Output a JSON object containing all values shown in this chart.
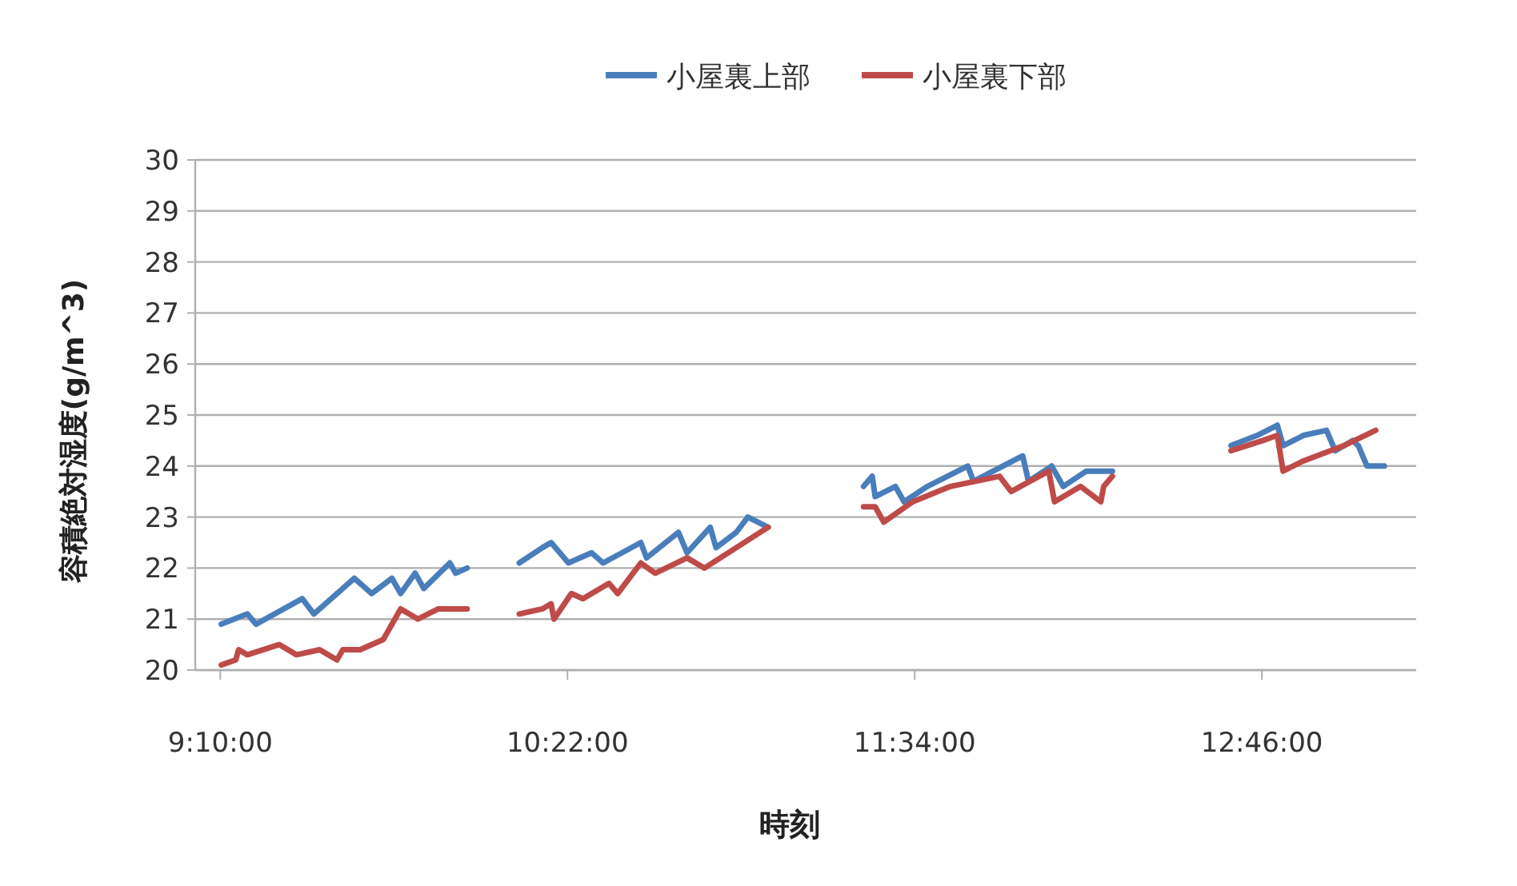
{
  "chart_data": {
    "type": "line",
    "xlabel": "時刻",
    "ylabel": "容積絶対湿度(g/m^3)",
    "xlim": [
      9.08,
      13.3
    ],
    "xticks": [
      {
        "value": 9.1667,
        "label": "9:10:00"
      },
      {
        "value": 10.3667,
        "label": "10:22:00"
      },
      {
        "value": 11.5667,
        "label": "11:34:00"
      },
      {
        "value": 12.7667,
        "label": "12:46:00"
      }
    ],
    "ylim": [
      20,
      30
    ],
    "yticks": [
      20,
      21,
      22,
      23,
      24,
      25,
      26,
      27,
      28,
      29,
      30
    ],
    "grid": "y",
    "legend": "top",
    "marker": "none",
    "line_style": "solid",
    "series": [
      {
        "name": "小屋裏上部",
        "color": "#4a7ebb",
        "x": [
          9.17,
          9.26,
          9.29,
          9.45,
          9.49,
          9.63,
          9.69,
          9.76,
          9.79,
          9.84,
          9.87,
          9.96,
          9.98,
          10.02,
          10.1,
          10.2,
          10.28,
          10.31,
          10.37,
          10.45,
          10.49,
          10.62,
          10.64,
          10.75,
          10.78,
          10.86,
          10.88,
          10.95,
          10.99,
          11.06,
          11.2,
          11.39,
          11.42,
          11.43,
          11.5,
          11.53,
          11.61,
          11.75,
          11.77,
          11.94,
          11.96,
          12.04,
          12.08,
          12.16,
          12.25,
          12.4,
          12.66,
          12.75,
          12.82,
          12.84,
          12.91,
          12.99,
          13.02,
          13.08,
          13.1,
          13.13,
          13.19
        ],
        "values": [
          20.9,
          21.1,
          20.9,
          21.4,
          21.1,
          21.8,
          21.5,
          21.8,
          21.5,
          21.9,
          21.6,
          22.1,
          21.9,
          22.0,
          null,
          22.1,
          22.4,
          22.5,
          22.1,
          22.3,
          22.1,
          22.5,
          22.2,
          22.7,
          22.3,
          22.8,
          22.4,
          22.7,
          23.0,
          22.8,
          null,
          23.6,
          23.8,
          23.4,
          23.6,
          23.3,
          23.6,
          24.0,
          23.7,
          24.2,
          23.7,
          24.0,
          23.6,
          23.9,
          23.9,
          null,
          24.4,
          24.6,
          24.8,
          24.4,
          24.6,
          24.7,
          24.3,
          24.5,
          24.4,
          24.0,
          24.0
        ]
      },
      {
        "name": "小屋裏下部",
        "color": "#be4b48",
        "x": [
          9.17,
          9.22,
          9.23,
          9.26,
          9.37,
          9.43,
          9.51,
          9.57,
          9.59,
          9.65,
          9.73,
          9.79,
          9.85,
          9.92,
          10.02,
          10.1,
          10.2,
          10.28,
          10.31,
          10.32,
          10.38,
          10.42,
          10.51,
          10.54,
          10.62,
          10.67,
          10.78,
          10.84,
          10.95,
          11.06,
          11.2,
          11.39,
          11.43,
          11.46,
          11.56,
          11.69,
          11.86,
          11.9,
          12.03,
          12.05,
          12.14,
          12.21,
          12.22,
          12.25,
          12.4,
          12.66,
          12.77,
          12.82,
          12.84,
          12.91,
          13.05,
          13.16
        ],
        "values": [
          20.1,
          20.2,
          20.4,
          20.3,
          20.5,
          20.3,
          20.4,
          20.2,
          20.4,
          20.4,
          20.6,
          21.2,
          21.0,
          21.2,
          21.2,
          null,
          21.1,
          21.2,
          21.3,
          21.0,
          21.5,
          21.4,
          21.7,
          21.5,
          22.1,
          21.9,
          22.2,
          22.0,
          22.4,
          22.8,
          null,
          23.2,
          23.2,
          22.9,
          23.3,
          23.6,
          23.8,
          23.5,
          23.9,
          23.3,
          23.6,
          23.3,
          23.6,
          23.8,
          null,
          24.3,
          24.5,
          24.6,
          23.9,
          24.1,
          24.4,
          24.7
        ]
      }
    ]
  }
}
